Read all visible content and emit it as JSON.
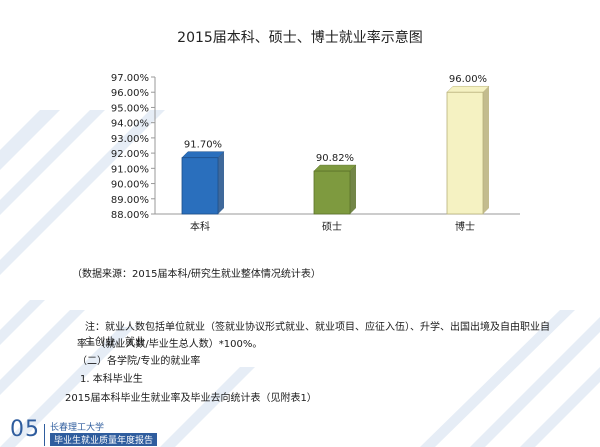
{
  "colors": {
    "bar_bachelor": "#2a6fbd",
    "bar_master": "#7e9a3f",
    "bar_doctor": "#f5f2c2",
    "accent": "#2f5d9e"
  },
  "chart_data": {
    "type": "bar",
    "title": "2015届本科、硕士、博士就业率示意图",
    "categories": [
      "本科",
      "硕士",
      "博士"
    ],
    "values": [
      91.7,
      90.82,
      96.0
    ],
    "value_labels": [
      "91.70%",
      "90.82%",
      "96.00%"
    ],
    "y_ticks": [
      "97.00%",
      "96.00%",
      "95.00%",
      "94.00%",
      "93.00%",
      "92.00%",
      "91.00%",
      "90.00%",
      "89.00%",
      "88.00%"
    ],
    "ylim": [
      88,
      97
    ],
    "xlabel": "",
    "ylabel": "",
    "grid": false
  },
  "text": {
    "source": "（数据来源：2015届本科/研究生就业整体情况统计表）",
    "note_line1": "注：就业人数包括单位就业（签就业协议形式就业、就业项目、应征入伍）、升学、出国出境及自由职业自主创业。就业",
    "note_line2": "率=（就业人数/毕业生总人数）*100%。",
    "section": "（二）各学院/专业的就业率",
    "subsection": "1.  本科毕业生",
    "table_ref": "2015届本科毕业生就业率及毕业去向统计表（见附表1）"
  },
  "footer": {
    "page_number": "05",
    "school": "长春理工大学",
    "report": "毕业生就业质量年度报告"
  }
}
